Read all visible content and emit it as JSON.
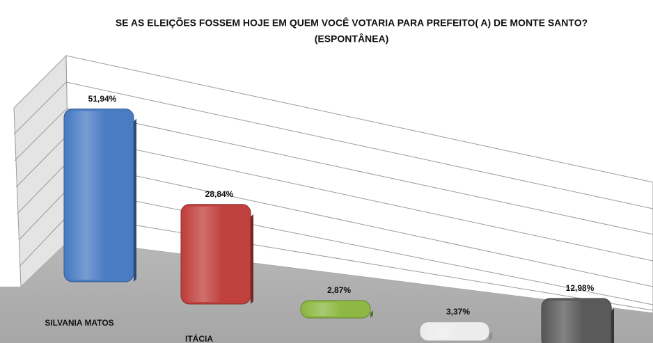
{
  "chart_data": {
    "type": "bar3d",
    "title": "SE AS ELEIÇÕES FOSSEM HOJE EM QUEM VOCÊ VOTARIA PARA PREFEITO( A) DE MONTE SANTO?",
    "subtitle": "(ESPONTÂNEA)",
    "categories": [
      "SILVANIA MATOS",
      "ITÁCIA",
      null,
      null,
      null
    ],
    "values": [
      51.94,
      28.84,
      2.87,
      3.37,
      12.98
    ],
    "value_labels": [
      "51,94%",
      "28,84%",
      "2,87%",
      "3,37%",
      "12,98%"
    ],
    "colors": [
      "#4a7cc4",
      "#c0413d",
      "#8db843",
      "#ececec",
      "#5a5a5a"
    ]
  }
}
